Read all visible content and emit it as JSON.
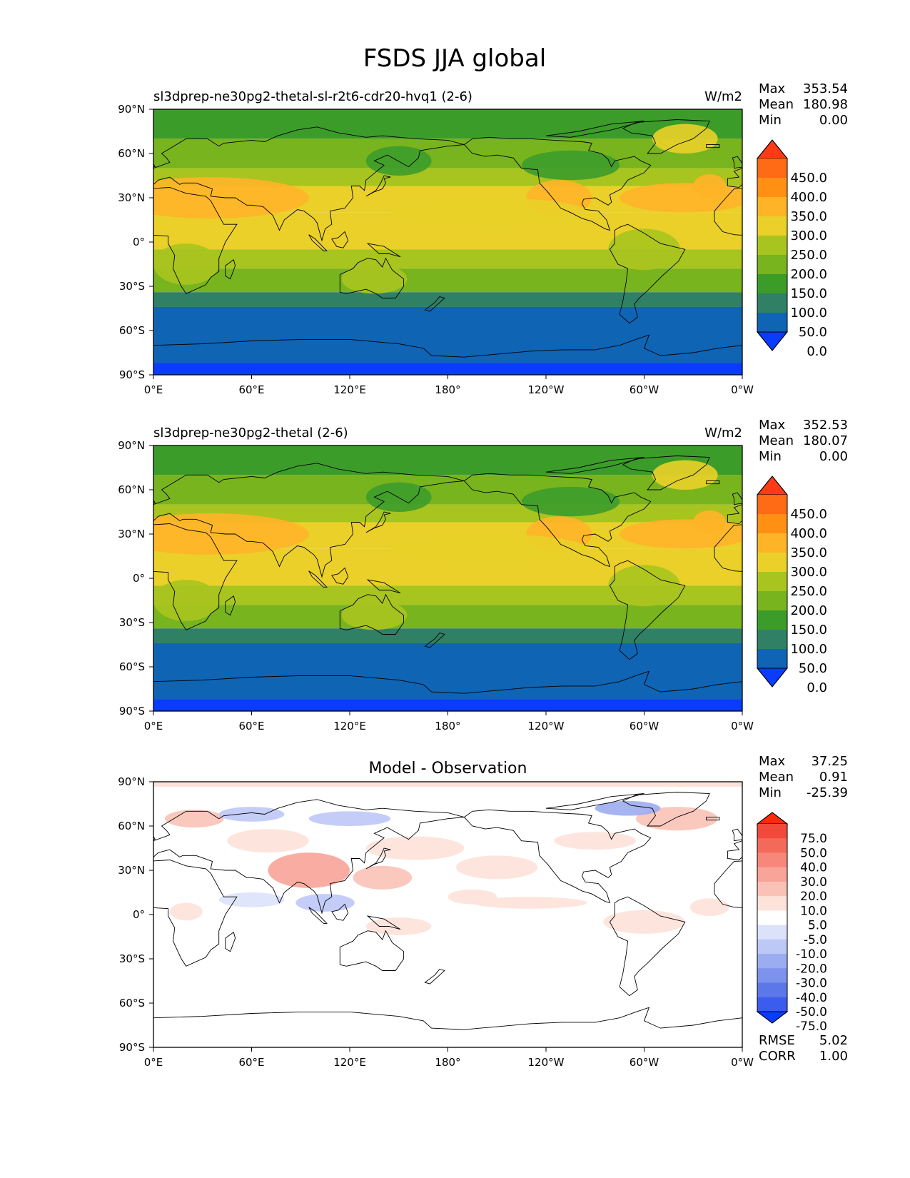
{
  "title": "FSDS JJA global",
  "panels": [
    {
      "title_left": "sl3dprep-ne30pg2-thetal-sl-r2t6-cdr20-hvq1 (2-6)",
      "title_center": "",
      "units": "W/m2",
      "stats": [
        {
          "label": "Max",
          "value": "353.54"
        },
        {
          "label": "Mean",
          "value": "180.98"
        },
        {
          "label": "Min",
          "value": "0.00"
        }
      ],
      "colorbar_labels": [
        "450.0",
        "400.0",
        "350.0",
        "300.0",
        "250.0",
        "200.0",
        "150.0",
        "100.0",
        "50.0",
        "0.0"
      ],
      "colorbar_colors": [
        "#ff3a14",
        "#ff6a14",
        "#ff9014",
        "#ffb428",
        "#ead028",
        "#a8c41e",
        "#78b41e",
        "#3c9c2a",
        "#2f8064",
        "#0f64b4",
        "#0a3cff"
      ],
      "extra_stats": []
    },
    {
      "title_left": "sl3dprep-ne30pg2-thetal (2-6)",
      "title_center": "",
      "units": "W/m2",
      "stats": [
        {
          "label": "Max",
          "value": "352.53"
        },
        {
          "label": "Mean",
          "value": "180.07"
        },
        {
          "label": "Min",
          "value": "0.00"
        }
      ],
      "colorbar_labels": [
        "450.0",
        "400.0",
        "350.0",
        "300.0",
        "250.0",
        "200.0",
        "150.0",
        "100.0",
        "50.0",
        "0.0"
      ],
      "colorbar_colors": [
        "#ff3a14",
        "#ff6a14",
        "#ff9014",
        "#ffb428",
        "#ead028",
        "#a8c41e",
        "#78b41e",
        "#3c9c2a",
        "#2f8064",
        "#0f64b4",
        "#0a3cff"
      ],
      "extra_stats": []
    },
    {
      "title_left": "",
      "title_center": "Model - Observation",
      "units": "",
      "stats": [
        {
          "label": "Max",
          "value": "37.25"
        },
        {
          "label": "Mean",
          "value": "0.91"
        },
        {
          "label": "Min",
          "value": "-25.39"
        }
      ],
      "colorbar_labels": [
        "75.0",
        "50.0",
        "40.0",
        "30.0",
        "20.0",
        "10.0",
        "5.0",
        "-5.0",
        "-10.0",
        "-20.0",
        "-30.0",
        "-40.0",
        "-50.0",
        "-75.0"
      ],
      "colorbar_colors": [
        "#ff2a0a",
        "#f24a3a",
        "#f46a5a",
        "#f6877a",
        "#f8a498",
        "#fac2b6",
        "#fde2da",
        "#ffffff",
        "#dce2fa",
        "#bcc8f6",
        "#9cacf0",
        "#7c92ec",
        "#5c78e8",
        "#3c5cf0",
        "#0a3cff"
      ],
      "extra_stats": [
        {
          "label": "RMSE",
          "value": "5.02"
        },
        {
          "label": "CORR",
          "value": "1.00"
        }
      ]
    }
  ],
  "axes": {
    "x_ticks": [
      "0°E",
      "60°E",
      "120°E",
      "180°",
      "120°W",
      "60°W",
      "0°W"
    ],
    "y_ticks": [
      "90°N",
      "60°N",
      "30°N",
      "0°",
      "30°S",
      "60°S",
      "90°S"
    ]
  },
  "map_layers": {
    "band_colors": [
      "#3c9c2a",
      "#78b41e",
      "#a8c41e",
      "#ead028",
      "#ead028",
      "#a8c41e",
      "#78b41e",
      "#2f8064",
      "#0f64b4",
      "#0a3cff"
    ],
    "diff_colors": [
      "#f6877a",
      "#f8a498",
      "#fac2b6",
      "#fde2da",
      "#dce2fa",
      "#bcc8f6",
      "#9cacf0"
    ],
    "coastline_color": "#000000",
    "frame_color": "#000000"
  }
}
